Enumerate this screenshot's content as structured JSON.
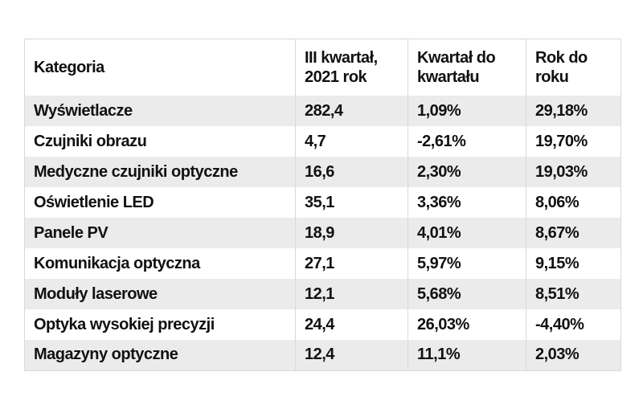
{
  "chart_data": {
    "type": "table",
    "title": "",
    "columns": [
      "Kategoria",
      "III kwartał, 2021 rok",
      "Kwartał do kwartału",
      "Rok do roku"
    ],
    "rows": [
      [
        "Wyświetlacze",
        "282,4",
        "1,09%",
        "29,18%"
      ],
      [
        "Czujniki obrazu",
        "4,7",
        "-2,61%",
        "19,70%"
      ],
      [
        "Medyczne czujniki optyczne",
        "16,6",
        "2,30%",
        "19,03%"
      ],
      [
        "Oświetlenie LED",
        "35,1",
        "3,36%",
        "8,06%"
      ],
      [
        "Panele PV",
        "18,9",
        "4,01%",
        "8,67%"
      ],
      [
        "Komunikacja optyczna",
        "27,1",
        "5,97%",
        "9,15%"
      ],
      [
        "Moduły laserowe",
        "12,1",
        "5,68%",
        "8,51%"
      ],
      [
        "Optyka wysokiej precyzji",
        "24,4",
        "26,03%",
        "-4,40%"
      ],
      [
        "Magazyny optyczne",
        "12,4",
        "11,1%",
        "2,03%"
      ]
    ],
    "layout": {
      "stripe_color": "#ebebeb",
      "border_color": "#d9d9d9",
      "text_color": "#111111",
      "background": "#ffffff",
      "striped_rows": "odd"
    }
  }
}
